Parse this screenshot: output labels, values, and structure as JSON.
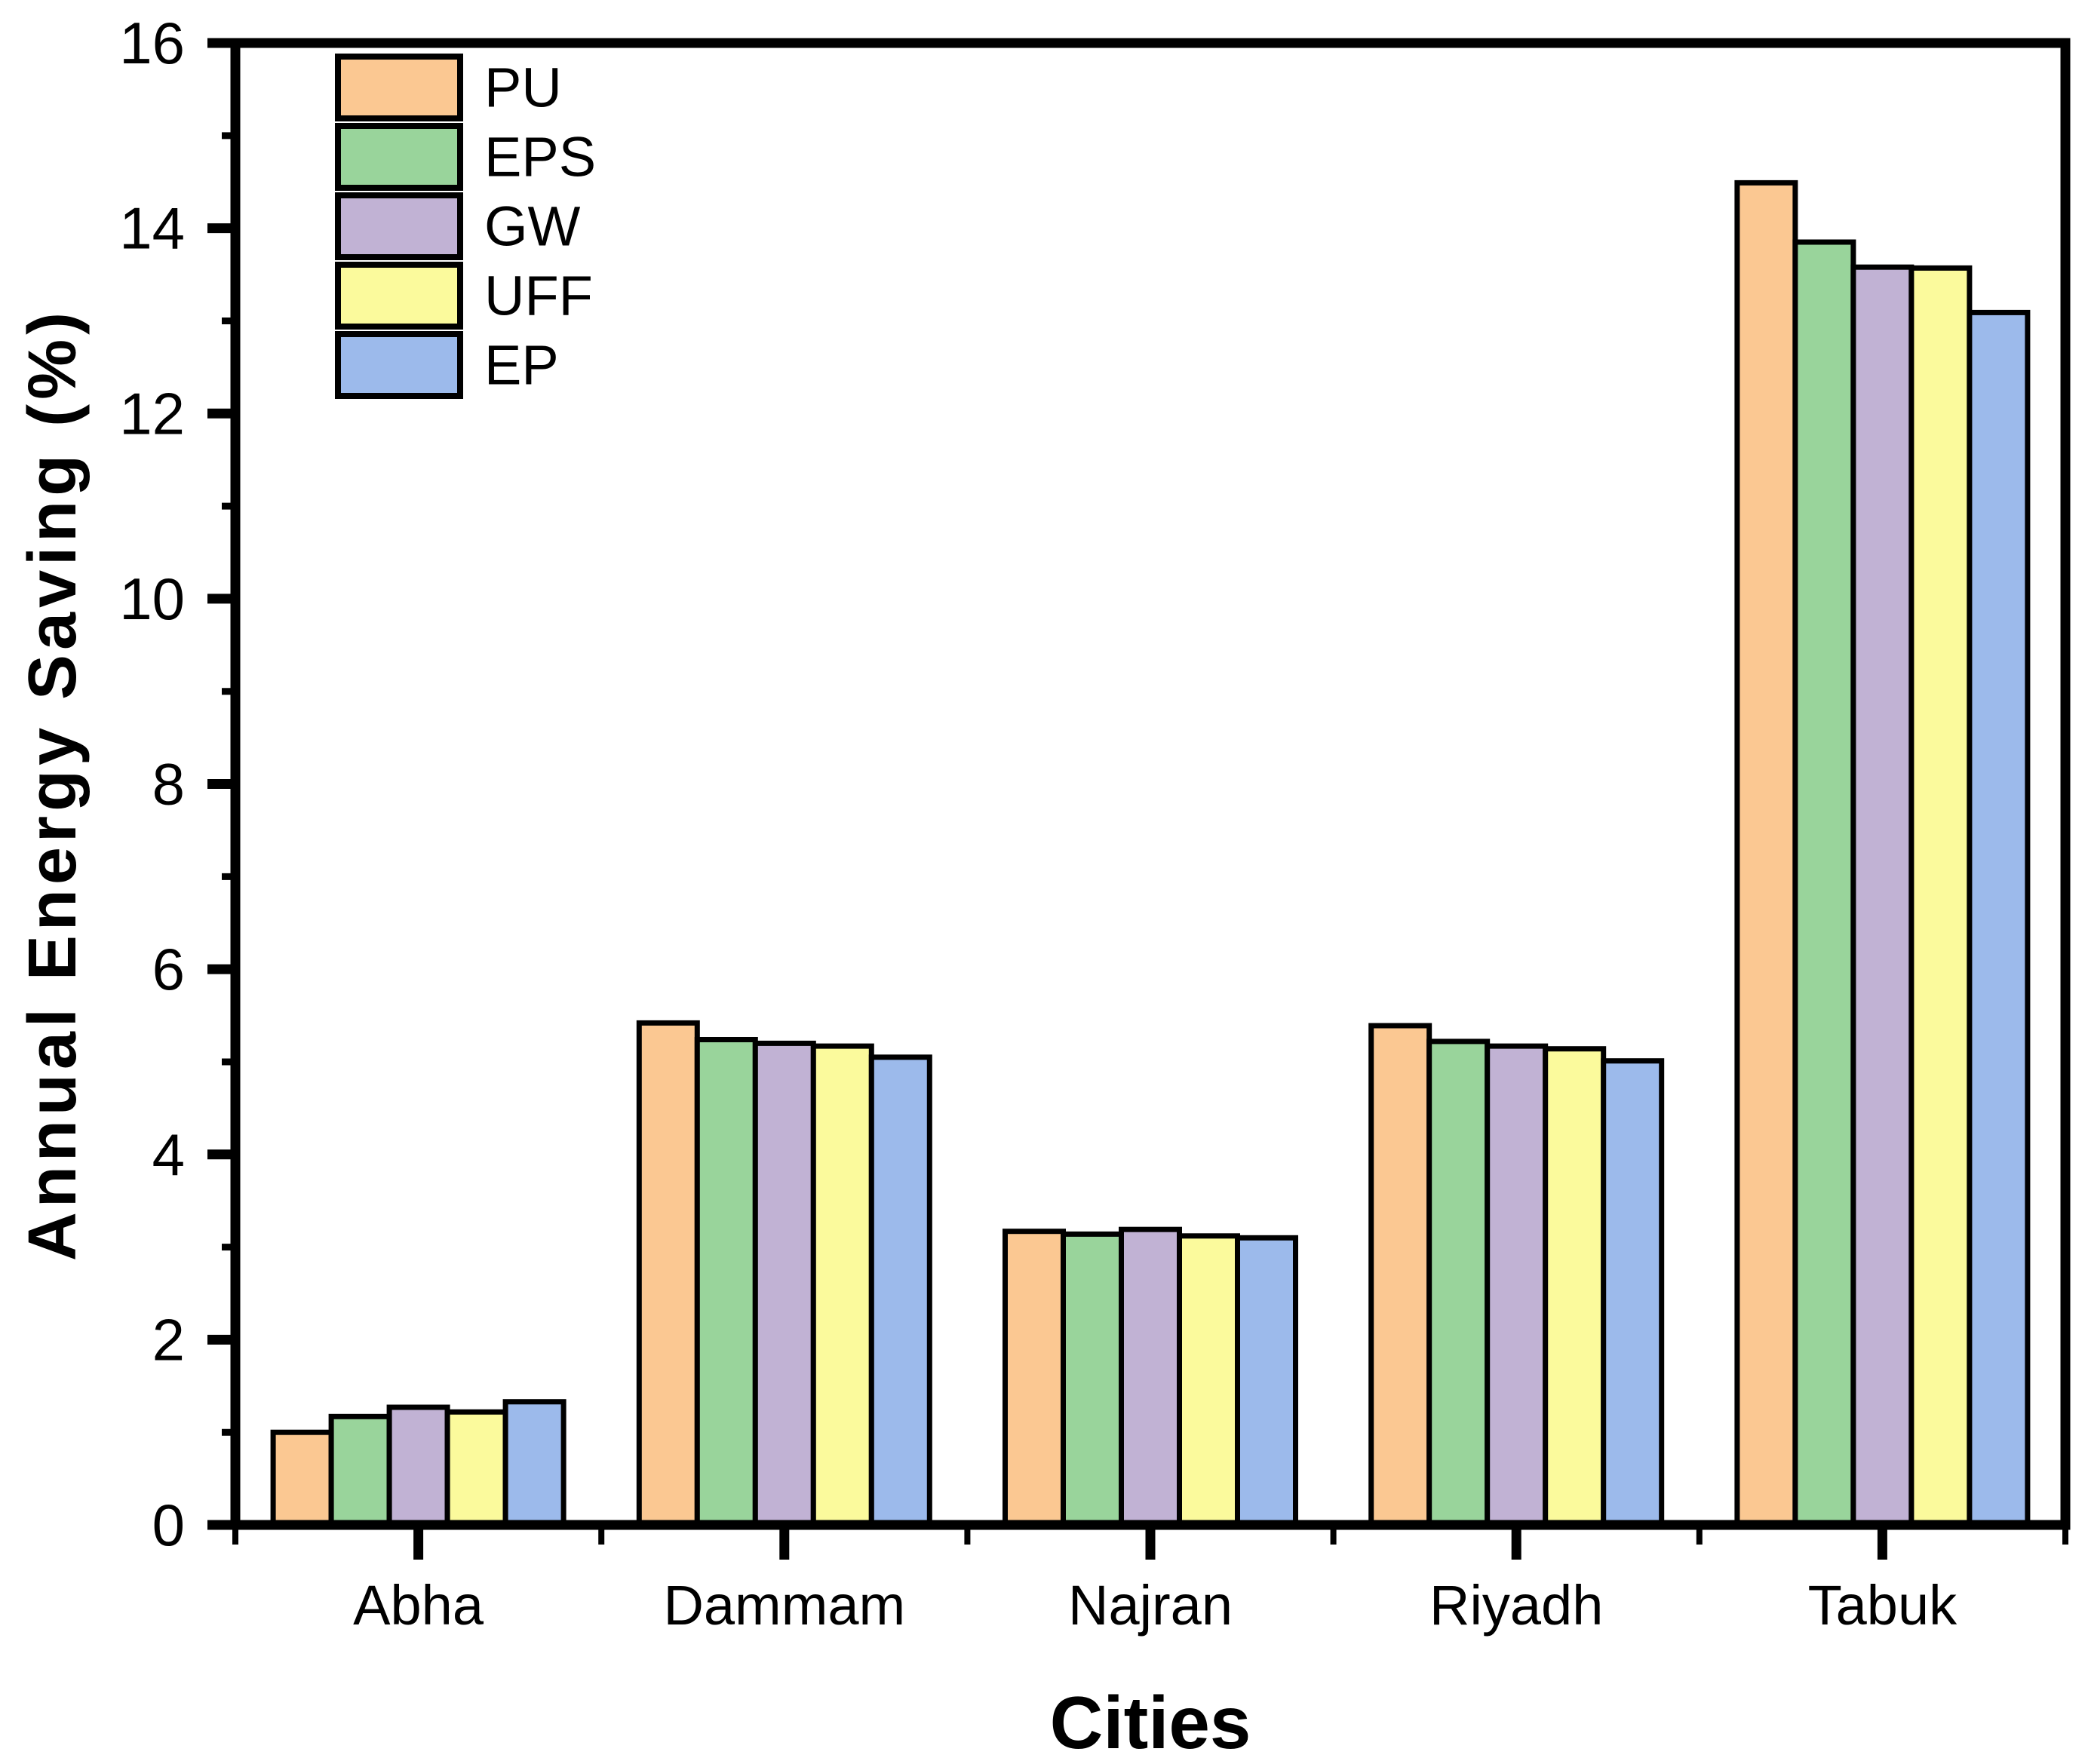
{
  "chart_data": {
    "type": "bar",
    "title": "",
    "xlabel": "Cities",
    "ylabel": "Annual Energy Saving (%)",
    "categories": [
      "Abha",
      "Dammam",
      "Najran",
      "Riyadh",
      "Tabuk"
    ],
    "series": [
      {
        "name": "PU",
        "color": "#FBC892",
        "values": [
          1.0,
          5.42,
          3.17,
          5.39,
          14.49
        ]
      },
      {
        "name": "EPS",
        "color": "#99D49B",
        "values": [
          1.17,
          5.24,
          3.14,
          5.22,
          13.85
        ]
      },
      {
        "name": "GW",
        "color": "#C1B2D4",
        "values": [
          1.27,
          5.2,
          3.19,
          5.17,
          13.58
        ]
      },
      {
        "name": "UFF",
        "color": "#FBFA9C",
        "values": [
          1.22,
          5.17,
          3.12,
          5.14,
          13.57
        ]
      },
      {
        "name": "EP",
        "color": "#9CBAEB",
        "values": [
          1.33,
          5.05,
          3.1,
          5.01,
          13.09
        ]
      }
    ],
    "ylim": [
      0,
      16
    ],
    "ytick_step": 2,
    "yminor_step": 1,
    "ytick_labels": [
      "0",
      "2",
      "4",
      "6",
      "8",
      "10",
      "12",
      "14",
      "16"
    ],
    "bar_edge_color": "#000000",
    "axis_color": "#000000",
    "grid": false,
    "legend_position": "top-left",
    "legend_labels": [
      "PU",
      "EPS",
      "GW",
      "UFF",
      "EP"
    ]
  }
}
